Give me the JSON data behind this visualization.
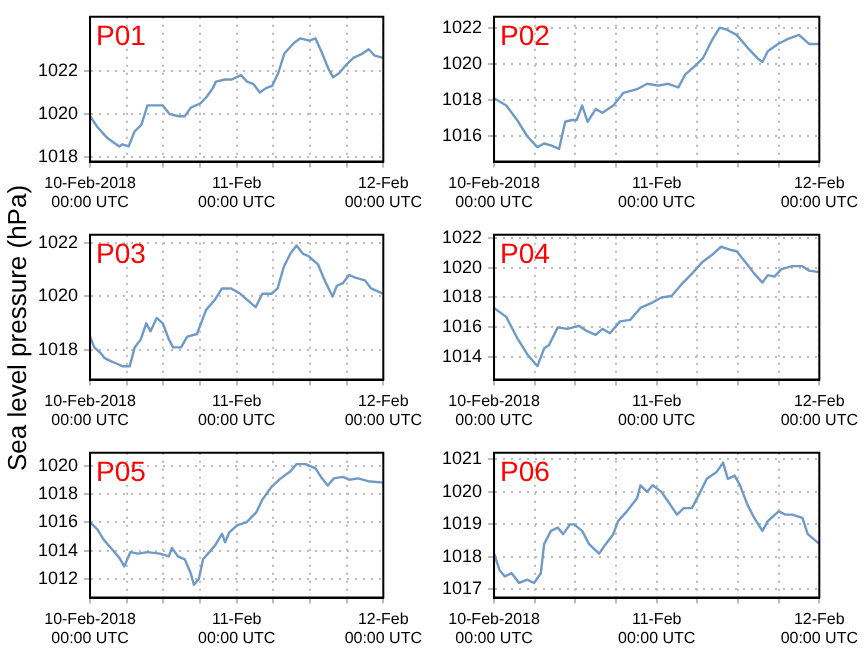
{
  "chart_data": [
    {
      "type": "line",
      "title": "P01",
      "xlim": [
        "2018-02-10T00:00",
        "2018-02-12T00:00"
      ],
      "xticks": [
        {
          "value": "2018-02-10T00:00",
          "label": "10-Feb-2018\n00:00 UTC"
        },
        {
          "value": "2018-02-10T06:00",
          "label": null
        },
        {
          "value": "2018-02-10T12:00",
          "label": null
        },
        {
          "value": "2018-02-10T18:00",
          "label": null
        },
        {
          "value": "2018-02-11T00:00",
          "label": "11-Feb\n00:00 UTC"
        },
        {
          "value": "2018-02-11T06:00",
          "label": null
        },
        {
          "value": "2018-02-11T12:00",
          "label": null
        },
        {
          "value": "2018-02-11T18:00",
          "label": null
        },
        {
          "value": "2018-02-12T00:00",
          "label": "12-Feb\n00:00 UTC"
        }
      ],
      "ylim": [
        1017.8,
        1024.5
      ],
      "yticks": [
        1018,
        1020,
        1022
      ],
      "grid": true,
      "x": [
        "2018-02-10T00:00",
        "2018-02-10T01:12",
        "2018-02-10T02:48",
        "2018-02-10T03:48",
        "2018-02-10T04:48",
        "2018-02-10T05:18",
        "2018-02-10T06:18",
        "2018-02-10T07:18",
        "2018-02-10T08:24",
        "2018-02-10T09:24",
        "2018-02-10T10:54",
        "2018-02-10T11:54",
        "2018-02-10T13:00",
        "2018-02-10T14:30",
        "2018-02-10T15:30",
        "2018-02-10T16:30",
        "2018-02-10T18:06",
        "2018-02-10T19:06",
        "2018-02-10T20:06",
        "2018-02-10T20:36",
        "2018-02-10T22:06",
        "2018-02-10T23:12",
        "2018-02-11T00:42",
        "2018-02-11T01:42",
        "2018-02-11T02:42",
        "2018-02-11T03:48",
        "2018-02-11T04:48",
        "2018-02-11T05:48",
        "2018-02-11T06:48",
        "2018-02-11T07:48",
        "2018-02-11T09:24",
        "2018-02-11T10:24",
        "2018-02-11T11:54",
        "2018-02-11T12:54",
        "2018-02-11T14:00",
        "2018-02-11T15:00",
        "2018-02-11T15:48",
        "2018-02-11T16:48",
        "2018-02-11T18:00",
        "2018-02-11T19:06",
        "2018-02-11T20:36",
        "2018-02-11T21:36",
        "2018-02-11T22:36",
        "2018-02-12T00:00"
      ],
      "series": [
        {
          "color": "#6f9ac6",
          "values": [
            1019.9,
            1019.4,
            1018.9,
            1018.7,
            1018.5,
            1018.6,
            1018.5,
            1019.2,
            1019.5,
            1020.4,
            1020.4,
            1020.4,
            1020,
            1019.9,
            1019.9,
            1020.3,
            1020.5,
            1020.8,
            1021.2,
            1021.5,
            1021.6,
            1021.6,
            1021.8,
            1021.5,
            1021.4,
            1021,
            1021.2,
            1021.3,
            1021.9,
            1022.8,
            1023.3,
            1023.5,
            1023.4,
            1023.5,
            1022.8,
            1022.1,
            1021.7,
            1021.9,
            1022.3,
            1022.6,
            1022.8,
            1023,
            1022.7,
            1022.6
          ]
        }
      ]
    },
    {
      "type": "line",
      "title": "P02",
      "xlim": [
        "2018-02-10T00:00",
        "2018-02-12T00:00"
      ],
      "xticks": [
        {
          "value": "2018-02-10T00:00",
          "label": "10-Feb-2018\n00:00 UTC"
        },
        {
          "value": "2018-02-10T06:00",
          "label": null
        },
        {
          "value": "2018-02-10T12:00",
          "label": null
        },
        {
          "value": "2018-02-10T18:00",
          "label": null
        },
        {
          "value": "2018-02-11T00:00",
          "label": "11-Feb\n00:00 UTC"
        },
        {
          "value": "2018-02-11T06:00",
          "label": null
        },
        {
          "value": "2018-02-11T12:00",
          "label": null
        },
        {
          "value": "2018-02-11T18:00",
          "label": null
        },
        {
          "value": "2018-02-12T00:00",
          "label": "12-Feb\n00:00 UTC"
        }
      ],
      "ylim": [
        1014.6,
        1022.6
      ],
      "yticks": [
        1016,
        1018,
        1020,
        1022
      ],
      "grid": true,
      "x": [
        "2018-02-10T00:00",
        "2018-02-10T01:48",
        "2018-02-10T03:24",
        "2018-02-10T04:54",
        "2018-02-10T06:24",
        "2018-02-10T07:24",
        "2018-02-10T08:24",
        "2018-02-10T09:36",
        "2018-02-10T10:30",
        "2018-02-10T11:30",
        "2018-02-10T12:12",
        "2018-02-10T13:00",
        "2018-02-10T13:48",
        "2018-02-10T15:00",
        "2018-02-10T16:00",
        "2018-02-10T17:36",
        "2018-02-10T19:06",
        "2018-02-10T21:06",
        "2018-02-10T22:36",
        "2018-02-11T00:12",
        "2018-02-11T01:42",
        "2018-02-11T03:12",
        "2018-02-11T04:12",
        "2018-02-11T05:42",
        "2018-02-11T06:48",
        "2018-02-11T08:18",
        "2018-02-11T09:18",
        "2018-02-11T10:18",
        "2018-02-11T11:48",
        "2018-02-11T13:24",
        "2018-02-11T14:54",
        "2018-02-11T15:36",
        "2018-02-11T16:24",
        "2018-02-11T17:54",
        "2018-02-11T19:30",
        "2018-02-11T21:00",
        "2018-02-11T22:30",
        "2018-02-12T00:00"
      ],
      "series": [
        {
          "color": "#6f9ac6",
          "values": [
            1018.1,
            1017.7,
            1016.9,
            1016,
            1015.4,
            1015.6,
            1015.5,
            1015.3,
            1016.8,
            1016.9,
            1016.9,
            1017.7,
            1016.8,
            1017.5,
            1017.3,
            1017.7,
            1018.4,
            1018.6,
            1018.9,
            1018.8,
            1018.9,
            1018.7,
            1019.4,
            1019.9,
            1020.3,
            1021.4,
            1022,
            1021.9,
            1021.6,
            1020.9,
            1020.3,
            1020.1,
            1020.7,
            1021.1,
            1021.4,
            1021.6,
            1021.1,
            1021.1
          ]
        }
      ]
    },
    {
      "type": "line",
      "title": "P03",
      "ylabel": "Sea level pressure (hPa)",
      "xlim": [
        "2018-02-10T00:00",
        "2018-02-12T00:00"
      ],
      "xticks": [
        {
          "value": "2018-02-10T00:00",
          "label": "10-Feb-2018\n00:00 UTC"
        },
        {
          "value": "2018-02-10T06:00",
          "label": null
        },
        {
          "value": "2018-02-10T12:00",
          "label": null
        },
        {
          "value": "2018-02-10T18:00",
          "label": null
        },
        {
          "value": "2018-02-11T00:00",
          "label": "11-Feb\n00:00 UTC"
        },
        {
          "value": "2018-02-11T06:00",
          "label": null
        },
        {
          "value": "2018-02-11T12:00",
          "label": null
        },
        {
          "value": "2018-02-11T18:00",
          "label": null
        },
        {
          "value": "2018-02-12T00:00",
          "label": "12-Feb\n00:00 UTC"
        }
      ],
      "ylim": [
        1016.9,
        1022.3
      ],
      "yticks": [
        1018,
        1020,
        1022
      ],
      "grid": true,
      "x": [
        "2018-02-10T00:00",
        "2018-02-10T00:42",
        "2018-02-10T01:42",
        "2018-02-10T02:24",
        "2018-02-10T03:18",
        "2018-02-10T04:18",
        "2018-02-10T05:18",
        "2018-02-10T06:30",
        "2018-02-10T07:18",
        "2018-02-10T08:18",
        "2018-02-10T09:12",
        "2018-02-10T09:54",
        "2018-02-10T10:54",
        "2018-02-10T11:54",
        "2018-02-10T12:54",
        "2018-02-10T13:36",
        "2018-02-10T14:54",
        "2018-02-10T15:54",
        "2018-02-10T17:30",
        "2018-02-10T19:00",
        "2018-02-10T20:30",
        "2018-02-10T21:36",
        "2018-02-10T23:06",
        "2018-02-11T00:36",
        "2018-02-11T02:06",
        "2018-02-11T03:06",
        "2018-02-11T04:12",
        "2018-02-11T05:42",
        "2018-02-11T06:42",
        "2018-02-11T07:42",
        "2018-02-11T08:48",
        "2018-02-11T09:48",
        "2018-02-11T10:48",
        "2018-02-11T11:48",
        "2018-02-11T13:18",
        "2018-02-11T14:24",
        "2018-02-11T15:42",
        "2018-02-11T16:24",
        "2018-02-11T17:24",
        "2018-02-11T18:24",
        "2018-02-11T19:24",
        "2018-02-11T21:00",
        "2018-02-11T22:00",
        "2018-02-12T00:00"
      ],
      "series": [
        {
          "color": "#6f9ac6",
          "values": [
            1018.5,
            1018.1,
            1017.9,
            1017.7,
            1017.6,
            1017.5,
            1017.4,
            1017.4,
            1018.1,
            1018.4,
            1019,
            1018.7,
            1019.2,
            1019,
            1018.4,
            1018.1,
            1018.1,
            1018.5,
            1018.6,
            1019.5,
            1019.9,
            1020.3,
            1020.3,
            1020.1,
            1019.8,
            1019.6,
            1020.1,
            1020.1,
            1020.3,
            1021.1,
            1021.6,
            1021.9,
            1021.6,
            1021.5,
            1021.2,
            1020.6,
            1020,
            1020.4,
            1020.5,
            1020.8,
            1020.7,
            1020.6,
            1020.3,
            1020.1
          ]
        }
      ]
    },
    {
      "type": "line",
      "title": "P04",
      "xlim": [
        "2018-02-10T00:00",
        "2018-02-12T00:00"
      ],
      "xticks": [
        {
          "value": "2018-02-10T00:00",
          "label": "10-Feb-2018\n00:00 UTC"
        },
        {
          "value": "2018-02-10T06:00",
          "label": null
        },
        {
          "value": "2018-02-10T12:00",
          "label": null
        },
        {
          "value": "2018-02-10T18:00",
          "label": null
        },
        {
          "value": "2018-02-11T00:00",
          "label": "11-Feb\n00:00 UTC"
        },
        {
          "value": "2018-02-11T06:00",
          "label": null
        },
        {
          "value": "2018-02-11T12:00",
          "label": null
        },
        {
          "value": "2018-02-11T18:00",
          "label": null
        },
        {
          "value": "2018-02-12T00:00",
          "label": "12-Feb\n00:00 UTC"
        }
      ],
      "ylim": [
        1012.5,
        1022.2
      ],
      "yticks": [
        1014,
        1016,
        1018,
        1020,
        1022
      ],
      "grid": true,
      "x": [
        "2018-02-10T00:00",
        "2018-02-10T01:48",
        "2018-02-10T03:24",
        "2018-02-10T04:54",
        "2018-02-10T06:24",
        "2018-02-10T07:24",
        "2018-02-10T08:06",
        "2018-02-10T09:24",
        "2018-02-10T10:48",
        "2018-02-10T12:30",
        "2018-02-10T13:30",
        "2018-02-10T15:00",
        "2018-02-10T16:00",
        "2018-02-10T17:06",
        "2018-02-10T18:36",
        "2018-02-10T20:06",
        "2018-02-10T21:36",
        "2018-02-10T23:06",
        "2018-02-11T00:42",
        "2018-02-11T02:12",
        "2018-02-11T03:42",
        "2018-02-11T05:12",
        "2018-02-11T06:48",
        "2018-02-11T08:18",
        "2018-02-11T09:30",
        "2018-02-11T10:48",
        "2018-02-11T11:48",
        "2018-02-11T13:24",
        "2018-02-11T14:24",
        "2018-02-11T15:36",
        "2018-02-11T16:24",
        "2018-02-11T17:24",
        "2018-02-11T18:24",
        "2018-02-11T20:00",
        "2018-02-11T21:30",
        "2018-02-11T22:30",
        "2018-02-12T00:00"
      ],
      "series": [
        {
          "color": "#6f9ac6",
          "values": [
            1017.3,
            1016.7,
            1015.3,
            1014.2,
            1013.4,
            1014.6,
            1014.8,
            1016,
            1015.9,
            1016.1,
            1015.8,
            1015.5,
            1015.9,
            1015.6,
            1016.4,
            1016.5,
            1017.3,
            1017.6,
            1018,
            1018.1,
            1018.9,
            1019.6,
            1020.4,
            1020.9,
            1021.4,
            1021.2,
            1021.1,
            1020.2,
            1019.6,
            1019,
            1019.5,
            1019.4,
            1019.9,
            1020.1,
            1020.1,
            1019.8,
            1019.7
          ]
        }
      ]
    },
    {
      "type": "line",
      "title": "P05",
      "xlim": [
        "2018-02-10T00:00",
        "2018-02-12T00:00"
      ],
      "xticks": [
        {
          "value": "2018-02-10T00:00",
          "label": "10-Feb-2018\n00:00 UTC"
        },
        {
          "value": "2018-02-10T06:00",
          "label": null
        },
        {
          "value": "2018-02-10T12:00",
          "label": null
        },
        {
          "value": "2018-02-10T18:00",
          "label": null
        },
        {
          "value": "2018-02-11T00:00",
          "label": "11-Feb\n00:00 UTC"
        },
        {
          "value": "2018-02-11T06:00",
          "label": null
        },
        {
          "value": "2018-02-11T12:00",
          "label": null
        },
        {
          "value": "2018-02-11T18:00",
          "label": null
        },
        {
          "value": "2018-02-12T00:00",
          "label": "12-Feb\n00:00 UTC"
        }
      ],
      "ylim": [
        1010.7,
        1020.9
      ],
      "yticks": [
        1012,
        1014,
        1016,
        1018,
        1020
      ],
      "grid": true,
      "x": [
        "2018-02-10T00:00",
        "2018-02-10T01:12",
        "2018-02-10T02:12",
        "2018-02-10T03:48",
        "2018-02-10T04:48",
        "2018-02-10T05:36",
        "2018-02-10T06:36",
        "2018-02-10T07:48",
        "2018-02-10T09:24",
        "2018-02-10T11:24",
        "2018-02-10T12:54",
        "2018-02-10T13:24",
        "2018-02-10T14:24",
        "2018-02-10T15:30",
        "2018-02-10T16:30",
        "2018-02-10T17:00",
        "2018-02-10T17:48",
        "2018-02-10T18:30",
        "2018-02-10T19:30",
        "2018-02-10T20:30",
        "2018-02-10T21:36",
        "2018-02-10T22:06",
        "2018-02-10T22:48",
        "2018-02-11T00:06",
        "2018-02-11T01:36",
        "2018-02-11T03:12",
        "2018-02-11T04:12",
        "2018-02-11T05:42",
        "2018-02-11T07:12",
        "2018-02-11T08:48",
        "2018-02-11T09:48",
        "2018-02-11T11:18",
        "2018-02-11T12:54",
        "2018-02-11T13:48",
        "2018-02-11T14:54",
        "2018-02-11T15:54",
        "2018-02-11T17:24",
        "2018-02-11T18:24",
        "2018-02-11T19:54",
        "2018-02-11T21:30",
        "2018-02-12T00:00"
      ],
      "series": [
        {
          "color": "#6f9ac6",
          "values": [
            1016,
            1015.5,
            1014.8,
            1014,
            1013.5,
            1012.9,
            1013.9,
            1013.8,
            1013.9,
            1013.8,
            1013.6,
            1014.2,
            1013.6,
            1013.4,
            1012.4,
            1011.6,
            1012,
            1013.4,
            1013.9,
            1014.4,
            1015.2,
            1014.6,
            1015.3,
            1015.8,
            1016,
            1016.7,
            1017.6,
            1018.5,
            1019.1,
            1019.6,
            1020.1,
            1020.1,
            1019.8,
            1019.2,
            1018.6,
            1019.1,
            1019.2,
            1019,
            1019.1,
            1018.9,
            1018.8
          ]
        }
      ]
    },
    {
      "type": "line",
      "title": "P06",
      "xlim": [
        "2018-02-10T00:00",
        "2018-02-12T00:00"
      ],
      "xticks": [
        {
          "value": "2018-02-10T00:00",
          "label": "10-Feb-2018\n00:00 UTC"
        },
        {
          "value": "2018-02-10T06:00",
          "label": null
        },
        {
          "value": "2018-02-10T12:00",
          "label": null
        },
        {
          "value": "2018-02-10T18:00",
          "label": null
        },
        {
          "value": "2018-02-11T00:00",
          "label": "11-Feb\n00:00 UTC"
        },
        {
          "value": "2018-02-11T06:00",
          "label": null
        },
        {
          "value": "2018-02-11T12:00",
          "label": null
        },
        {
          "value": "2018-02-11T18:00",
          "label": null
        },
        {
          "value": "2018-02-12T00:00",
          "label": "12-Feb\n00:00 UTC"
        }
      ],
      "ylim": [
        1016.75,
        1021.2
      ],
      "yticks": [
        1017,
        1018,
        1019,
        1020,
        1021
      ],
      "grid": true,
      "x": [
        "2018-02-10T00:00",
        "2018-02-10T00:48",
        "2018-02-10T01:36",
        "2018-02-10T02:36",
        "2018-02-10T03:42",
        "2018-02-10T04:54",
        "2018-02-10T05:54",
        "2018-02-10T06:54",
        "2018-02-10T07:24",
        "2018-02-10T08:24",
        "2018-02-10T09:24",
        "2018-02-10T10:12",
        "2018-02-10T11:12",
        "2018-02-10T11:48",
        "2018-02-10T13:00",
        "2018-02-10T14:00",
        "2018-02-10T15:30",
        "2018-02-10T16:30",
        "2018-02-10T17:36",
        "2018-02-10T18:18",
        "2018-02-10T19:36",
        "2018-02-10T21:06",
        "2018-02-10T21:36",
        "2018-02-10T22:36",
        "2018-02-10T23:24",
        "2018-02-11T00:42",
        "2018-02-11T01:42",
        "2018-02-11T03:00",
        "2018-02-11T04:00",
        "2018-02-11T05:12",
        "2018-02-11T06:12",
        "2018-02-11T07:24",
        "2018-02-11T08:48",
        "2018-02-11T09:48",
        "2018-02-11T10:30",
        "2018-02-11T11:30",
        "2018-02-11T12:18",
        "2018-02-11T13:24",
        "2018-02-11T14:24",
        "2018-02-11T15:36",
        "2018-02-11T16:24",
        "2018-02-11T18:00",
        "2018-02-11T19:00",
        "2018-02-11T20:00",
        "2018-02-11T21:30",
        "2018-02-11T22:18",
        "2018-02-12T00:00"
      ],
      "series": [
        {
          "color": "#6f9ac6",
          "values": [
            1018.1,
            1017.6,
            1017.4,
            1017.5,
            1017.2,
            1017.3,
            1017.2,
            1017.5,
            1018.4,
            1018.8,
            1018.9,
            1018.7,
            1019,
            1019,
            1018.8,
            1018.4,
            1018.1,
            1018.4,
            1018.7,
            1019.1,
            1019.4,
            1019.8,
            1020.2,
            1020,
            1020.2,
            1020,
            1019.7,
            1019.3,
            1019.5,
            1019.5,
            1019.9,
            1020.4,
            1020.6,
            1020.9,
            1020.4,
            1020.5,
            1020.2,
            1019.6,
            1019.2,
            1018.8,
            1019.1,
            1019.4,
            1019.3,
            1019.3,
            1019.2,
            1018.7,
            1018.4
          ]
        }
      ]
    }
  ]
}
